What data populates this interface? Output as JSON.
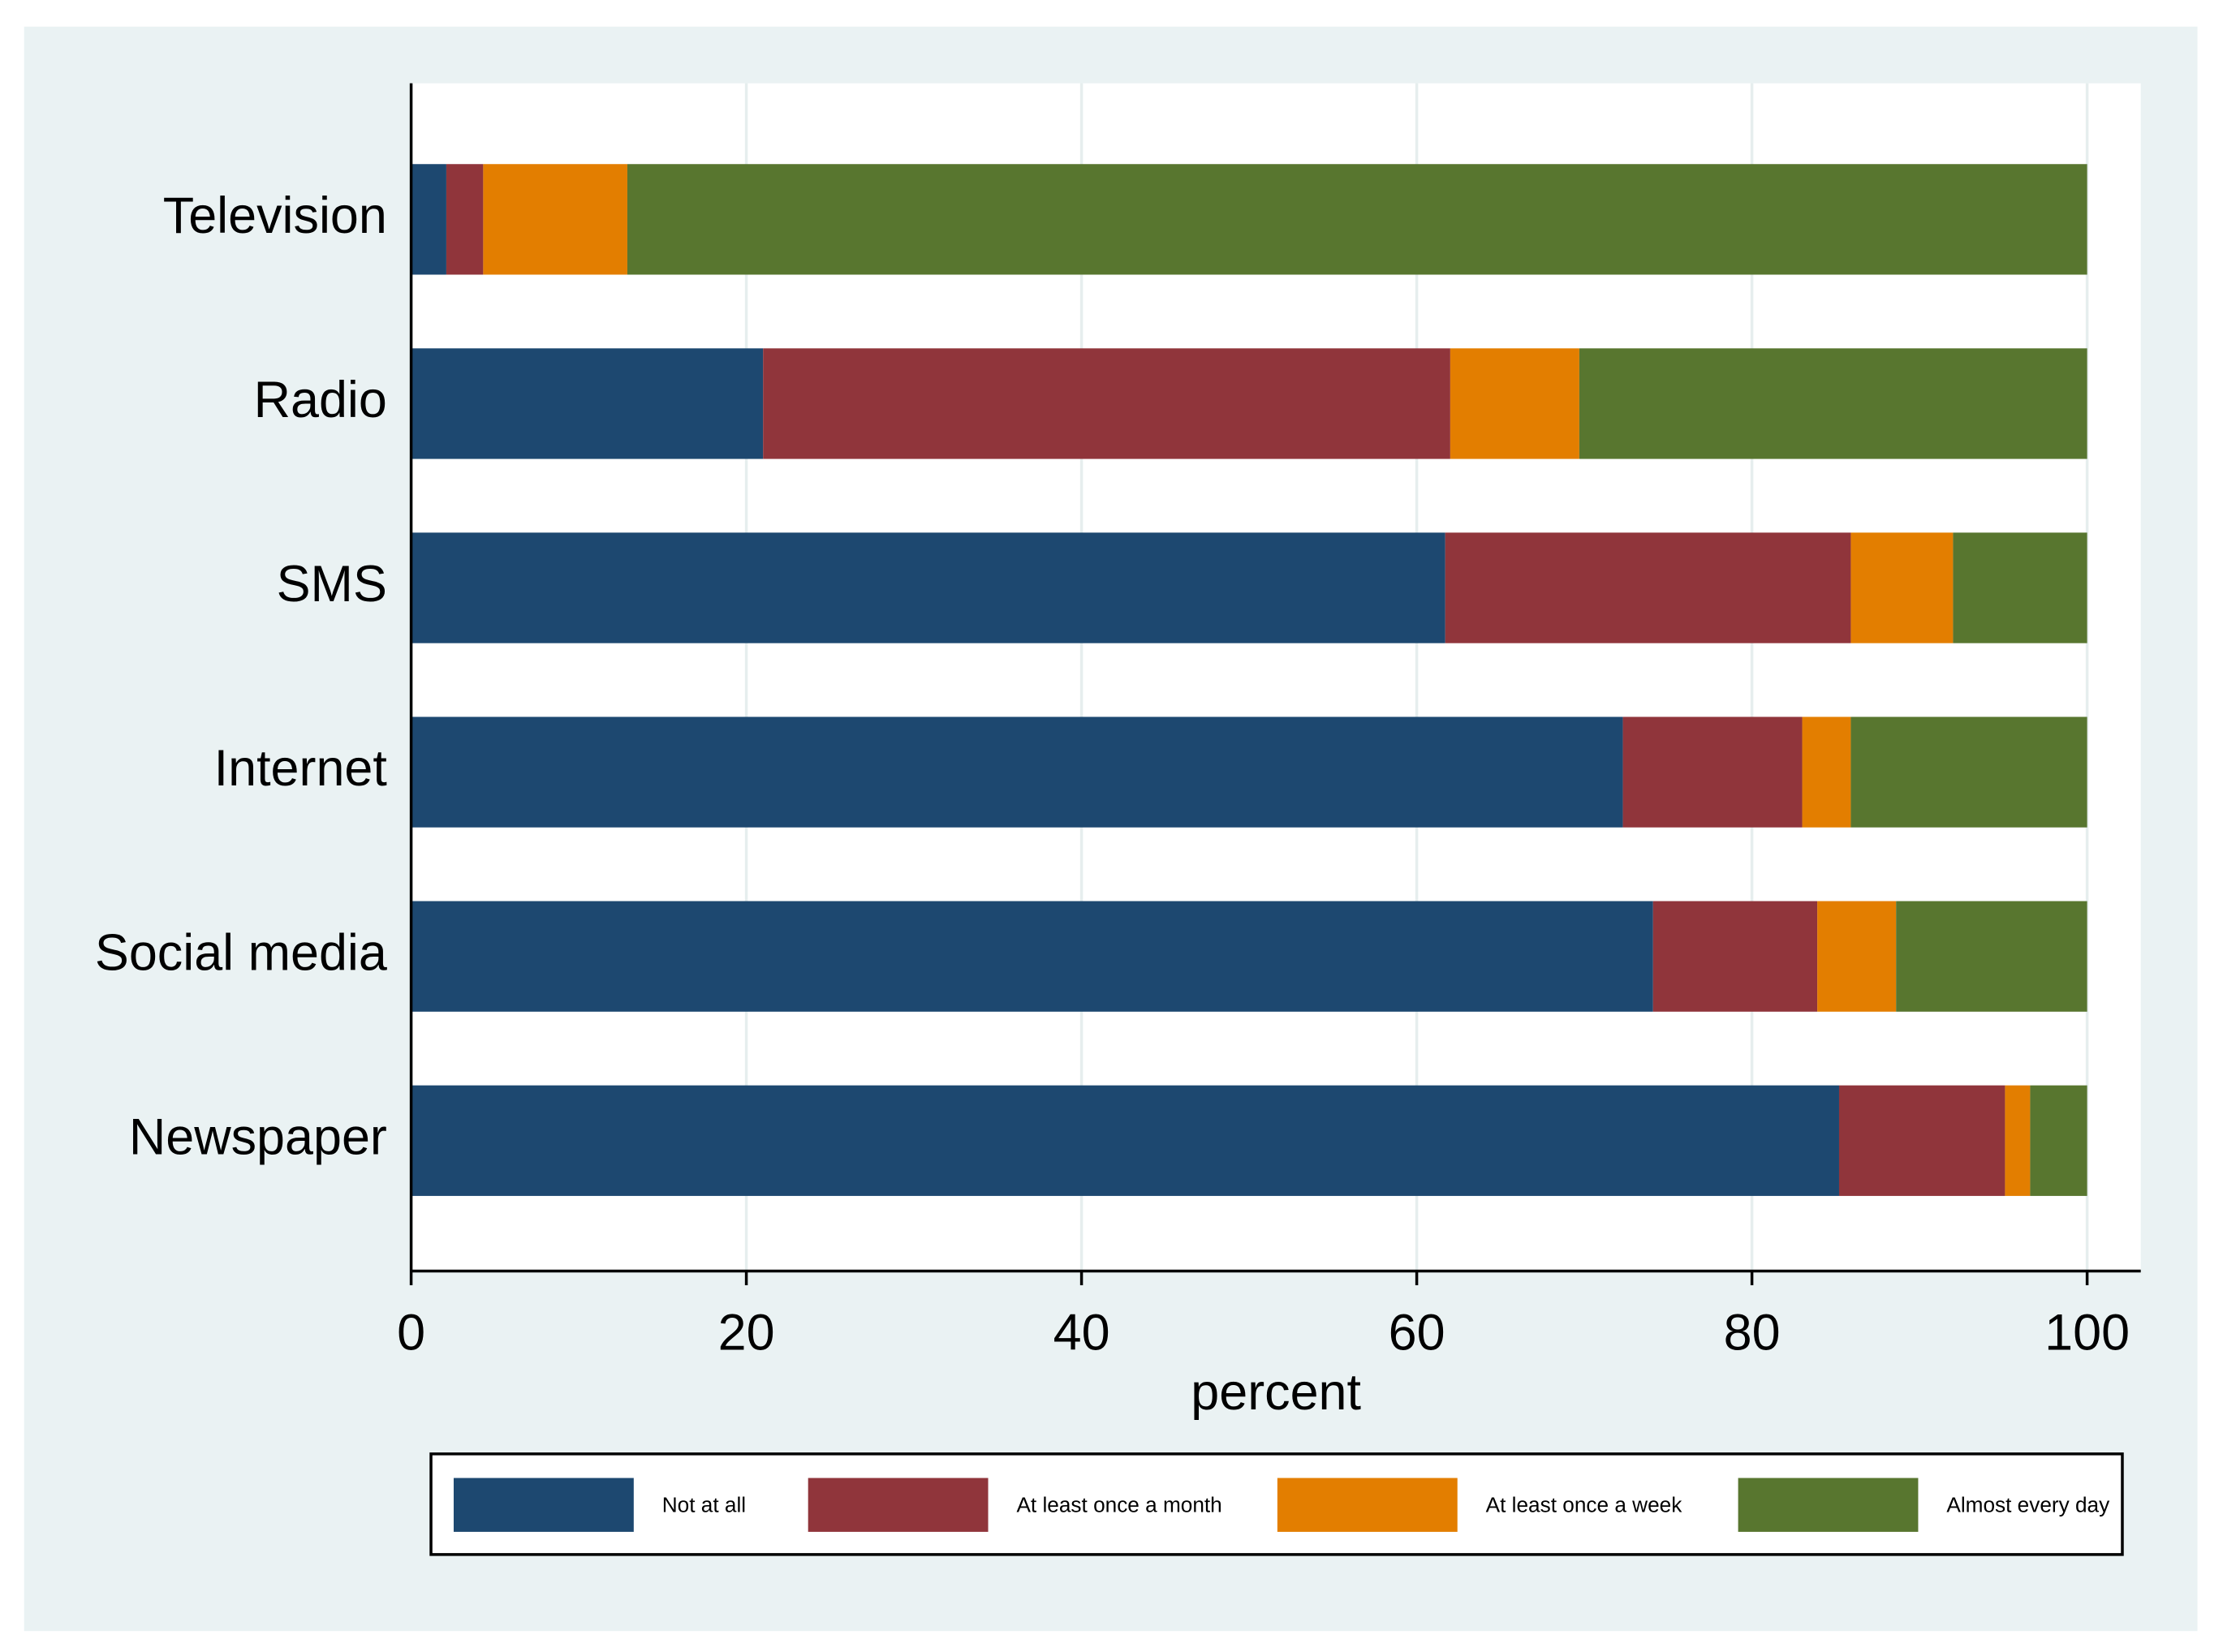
{
  "chart_data": {
    "type": "stacked_barh",
    "categories": [
      "Television",
      "Radio",
      "SMS",
      "Internet",
      "Social media",
      "Newspaper"
    ],
    "series": [
      {
        "name": "Not at all",
        "color": "#1d4870",
        "values": [
          2.1,
          21.0,
          61.7,
          72.3,
          74.1,
          85.2
        ]
      },
      {
        "name": "At least once a month",
        "color": "#90353b",
        "values": [
          2.2,
          41.0,
          24.2,
          10.7,
          9.8,
          9.9
        ]
      },
      {
        "name": "At least once a week",
        "color": "#e37e00",
        "values": [
          8.6,
          7.7,
          6.1,
          2.9,
          4.7,
          1.5
        ]
      },
      {
        "name": "Almost every day",
        "color": "#58762f",
        "values": [
          87.1,
          30.3,
          8.0,
          14.1,
          11.4,
          3.4
        ]
      }
    ],
    "xlabel": "percent",
    "xlim": [
      0,
      103.2
    ],
    "xticks": [
      0,
      20,
      40,
      60,
      80,
      100
    ],
    "grid": true,
    "legend": "bottom"
  }
}
